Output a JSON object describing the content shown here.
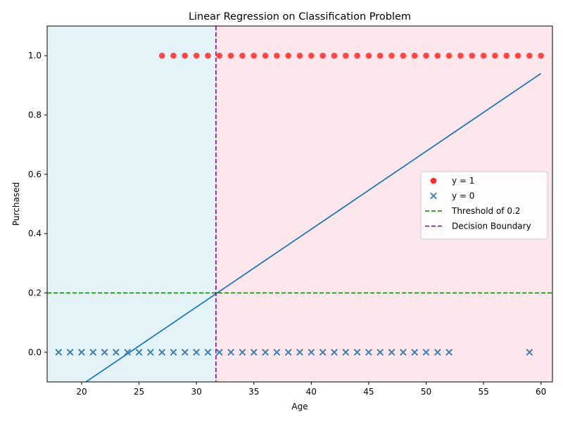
{
  "chart_data": {
    "type": "scatter",
    "title": "Linear Regression on Classification Problem",
    "xlabel": "Age",
    "ylabel": "Purchased",
    "xlim": [
      17,
      61
    ],
    "ylim": [
      -0.1,
      1.1
    ],
    "xticks": [
      "20",
      "25",
      "30",
      "35",
      "40",
      "45",
      "50",
      "55",
      "60"
    ],
    "yticks": [
      "0.0",
      "0.2",
      "0.4",
      "0.6",
      "0.8",
      "1.0"
    ],
    "grid": false,
    "legend_position": "center-right",
    "shaded_regions": [
      {
        "from": 17,
        "to": 31.7,
        "color": "#e3f3f8"
      },
      {
        "from": 31.7,
        "to": 61,
        "color": "#fde6ec"
      }
    ],
    "series": [
      {
        "name": "y = 1",
        "kind": "scatter",
        "marker": "circle",
        "color": "#ff2a2a",
        "x": [
          27,
          28,
          29,
          30,
          31,
          32,
          33,
          34,
          35,
          36,
          37,
          38,
          39,
          40,
          41,
          42,
          43,
          44,
          45,
          46,
          47,
          48,
          49,
          50,
          51,
          52,
          53,
          54,
          55,
          56,
          57,
          58,
          59,
          60
        ],
        "y": [
          1,
          1,
          1,
          1,
          1,
          1,
          1,
          1,
          1,
          1,
          1,
          1,
          1,
          1,
          1,
          1,
          1,
          1,
          1,
          1,
          1,
          1,
          1,
          1,
          1,
          1,
          1,
          1,
          1,
          1,
          1,
          1,
          1,
          1
        ]
      },
      {
        "name": "y = 0",
        "kind": "scatter",
        "marker": "x",
        "color": "#3f7fb2",
        "x": [
          18,
          19,
          20,
          21,
          22,
          23,
          24,
          25,
          26,
          27,
          28,
          29,
          30,
          31,
          32,
          33,
          34,
          35,
          36,
          37,
          38,
          39,
          40,
          41,
          42,
          43,
          44,
          45,
          46,
          47,
          48,
          49,
          50,
          51,
          52,
          59
        ],
        "y": [
          0,
          0,
          0,
          0,
          0,
          0,
          0,
          0,
          0,
          0,
          0,
          0,
          0,
          0,
          0,
          0,
          0,
          0,
          0,
          0,
          0,
          0,
          0,
          0,
          0,
          0,
          0,
          0,
          0,
          0,
          0,
          0,
          0,
          0,
          0,
          0
        ]
      },
      {
        "name": "",
        "kind": "line",
        "color": "#1f77b4",
        "x": [
          20,
          60
        ],
        "y": [
          -0.11,
          0.94
        ]
      },
      {
        "name": "Threshold of 0.2",
        "kind": "hline",
        "color": "#008000",
        "dash": true,
        "y": 0.2
      },
      {
        "name": "Decision Boundary",
        "kind": "vline",
        "color": "#800080",
        "dash": true,
        "x": 31.7
      }
    ]
  }
}
